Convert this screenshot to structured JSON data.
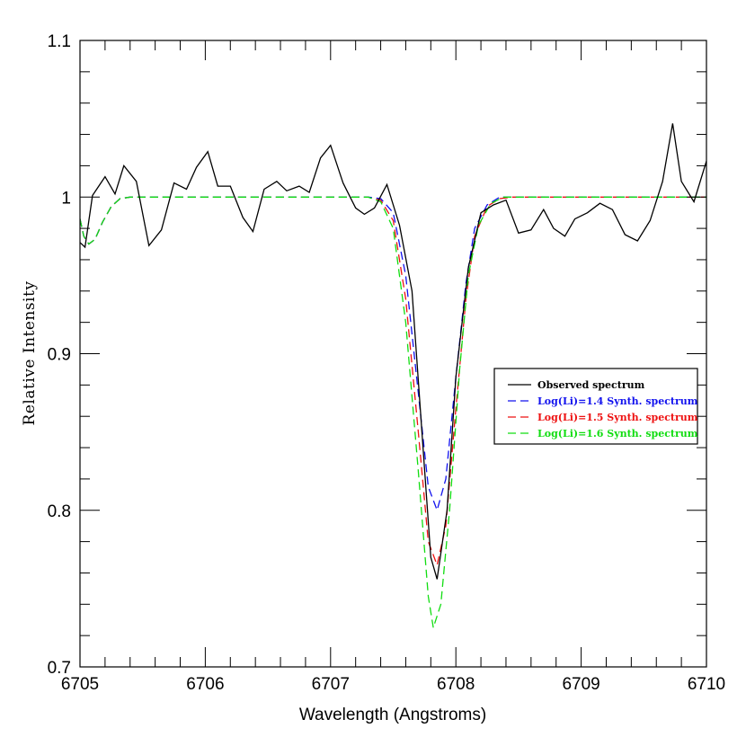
{
  "chart_data": {
    "type": "line",
    "title": "",
    "xlabel": "Wavelength (Angstroms)",
    "ylabel": "Relative Intensity",
    "xlim": [
      6705,
      6710
    ],
    "ylim": [
      0.7,
      1.1
    ],
    "x_ticks": [
      6705,
      6706,
      6707,
      6708,
      6709,
      6710
    ],
    "x_tick_labels": [
      "6705",
      "6706",
      "6707",
      "6708",
      "6709",
      "6710"
    ],
    "y_ticks": [
      0.7,
      0.8,
      0.9,
      1.0,
      1.1
    ],
    "y_tick_labels": [
      "0.7",
      "0.8",
      "0.9",
      "1",
      "1.1"
    ],
    "grid": false,
    "legend_position": "center-right",
    "legend_order": [
      0,
      2,
      1,
      3
    ],
    "series": [
      {
        "name": "Observed spectrum",
        "color": "#000000",
        "style": "solid",
        "points": [
          [
            6705.0,
            0.971
          ],
          [
            6705.04,
            0.968
          ],
          [
            6705.1,
            1.001
          ],
          [
            6705.2,
            1.013
          ],
          [
            6705.28,
            1.002
          ],
          [
            6705.35,
            1.02
          ],
          [
            6705.45,
            1.01
          ],
          [
            6705.55,
            0.969
          ],
          [
            6705.65,
            0.979
          ],
          [
            6705.75,
            1.009
          ],
          [
            6705.85,
            1.005
          ],
          [
            6705.93,
            1.019
          ],
          [
            6706.02,
            1.029
          ],
          [
            6706.1,
            1.007
          ],
          [
            6706.2,
            1.007
          ],
          [
            6706.3,
            0.987
          ],
          [
            6706.38,
            0.978
          ],
          [
            6706.47,
            1.005
          ],
          [
            6706.57,
            1.01
          ],
          [
            6706.65,
            1.004
          ],
          [
            6706.75,
            1.007
          ],
          [
            6706.83,
            1.003
          ],
          [
            6706.92,
            1.025
          ],
          [
            6707.0,
            1.033
          ],
          [
            6707.1,
            1.009
          ],
          [
            6707.2,
            0.993
          ],
          [
            6707.27,
            0.989
          ],
          [
            6707.35,
            0.993
          ],
          [
            6707.45,
            1.008
          ],
          [
            6707.55,
            0.982
          ],
          [
            6707.65,
            0.94
          ],
          [
            6707.72,
            0.86
          ],
          [
            6707.8,
            0.77
          ],
          [
            6707.85,
            0.756
          ],
          [
            6707.93,
            0.8
          ],
          [
            6708.0,
            0.885
          ],
          [
            6708.1,
            0.955
          ],
          [
            6708.2,
            0.99
          ],
          [
            6708.3,
            0.995
          ],
          [
            6708.4,
            0.998
          ],
          [
            6708.5,
            0.977
          ],
          [
            6708.6,
            0.979
          ],
          [
            6708.7,
            0.992
          ],
          [
            6708.78,
            0.98
          ],
          [
            6708.87,
            0.975
          ],
          [
            6708.95,
            0.986
          ],
          [
            6709.05,
            0.99
          ],
          [
            6709.15,
            0.996
          ],
          [
            6709.25,
            0.992
          ],
          [
            6709.35,
            0.976
          ],
          [
            6709.45,
            0.972
          ],
          [
            6709.55,
            0.985
          ],
          [
            6709.65,
            1.01
          ],
          [
            6709.73,
            1.047
          ],
          [
            6709.8,
            1.01
          ],
          [
            6709.9,
            0.997
          ],
          [
            6710.0,
            1.023
          ],
          [
            6710.1,
            1.001
          ],
          [
            6710.15,
            1.004
          ]
        ]
      },
      {
        "name": "Log(Li)=1.5 Synth. spectrum",
        "color": "#ee1111",
        "style": "dashed",
        "points": [
          [
            6705.0,
            0.986
          ],
          [
            6705.03,
            0.975
          ],
          [
            6705.07,
            0.97
          ],
          [
            6705.12,
            0.973
          ],
          [
            6705.18,
            0.984
          ],
          [
            6705.25,
            0.994
          ],
          [
            6705.32,
            0.999
          ],
          [
            6705.4,
            1.0
          ],
          [
            6707.3,
            1.0
          ],
          [
            6707.4,
            0.998
          ],
          [
            6707.5,
            0.985
          ],
          [
            6707.6,
            0.935
          ],
          [
            6707.7,
            0.85
          ],
          [
            6707.78,
            0.78
          ],
          [
            6707.85,
            0.765
          ],
          [
            6707.92,
            0.79
          ],
          [
            6708.0,
            0.865
          ],
          [
            6708.08,
            0.935
          ],
          [
            6708.15,
            0.975
          ],
          [
            6708.25,
            0.994
          ],
          [
            6708.35,
            0.999
          ],
          [
            6708.45,
            1.0
          ],
          [
            6710.15,
            1.0
          ]
        ]
      },
      {
        "name": "Log(Li)=1.4 Synth. spectrum",
        "color": "#1111ee",
        "style": "dashed",
        "points": [
          [
            6705.0,
            0.986
          ],
          [
            6705.03,
            0.975
          ],
          [
            6705.07,
            0.97
          ],
          [
            6705.12,
            0.973
          ],
          [
            6705.18,
            0.984
          ],
          [
            6705.25,
            0.994
          ],
          [
            6705.32,
            0.999
          ],
          [
            6705.4,
            1.0
          ],
          [
            6707.3,
            1.0
          ],
          [
            6707.4,
            0.999
          ],
          [
            6707.5,
            0.99
          ],
          [
            6707.6,
            0.95
          ],
          [
            6707.7,
            0.875
          ],
          [
            6707.78,
            0.815
          ],
          [
            6707.85,
            0.8
          ],
          [
            6707.92,
            0.82
          ],
          [
            6708.0,
            0.885
          ],
          [
            6708.08,
            0.945
          ],
          [
            6708.15,
            0.98
          ],
          [
            6708.25,
            0.995
          ],
          [
            6708.35,
            1.0
          ],
          [
            6710.15,
            1.0
          ]
        ]
      },
      {
        "name": "Log(Li)=1.6 Synth. spectrum",
        "color": "#11dd11",
        "style": "dashed",
        "points": [
          [
            6705.0,
            0.986
          ],
          [
            6705.03,
            0.975
          ],
          [
            6705.07,
            0.97
          ],
          [
            6705.12,
            0.973
          ],
          [
            6705.18,
            0.984
          ],
          [
            6705.25,
            0.994
          ],
          [
            6705.32,
            0.999
          ],
          [
            6705.4,
            1.0
          ],
          [
            6707.3,
            1.0
          ],
          [
            6707.4,
            0.997
          ],
          [
            6707.5,
            0.98
          ],
          [
            6707.6,
            0.92
          ],
          [
            6707.7,
            0.825
          ],
          [
            6707.78,
            0.745
          ],
          [
            6707.82,
            0.725
          ],
          [
            6707.88,
            0.74
          ],
          [
            6707.95,
            0.8
          ],
          [
            6708.03,
            0.89
          ],
          [
            6708.1,
            0.95
          ],
          [
            6708.18,
            0.982
          ],
          [
            6708.28,
            0.996
          ],
          [
            6708.38,
            1.0
          ],
          [
            6710.15,
            1.0
          ]
        ]
      }
    ]
  }
}
